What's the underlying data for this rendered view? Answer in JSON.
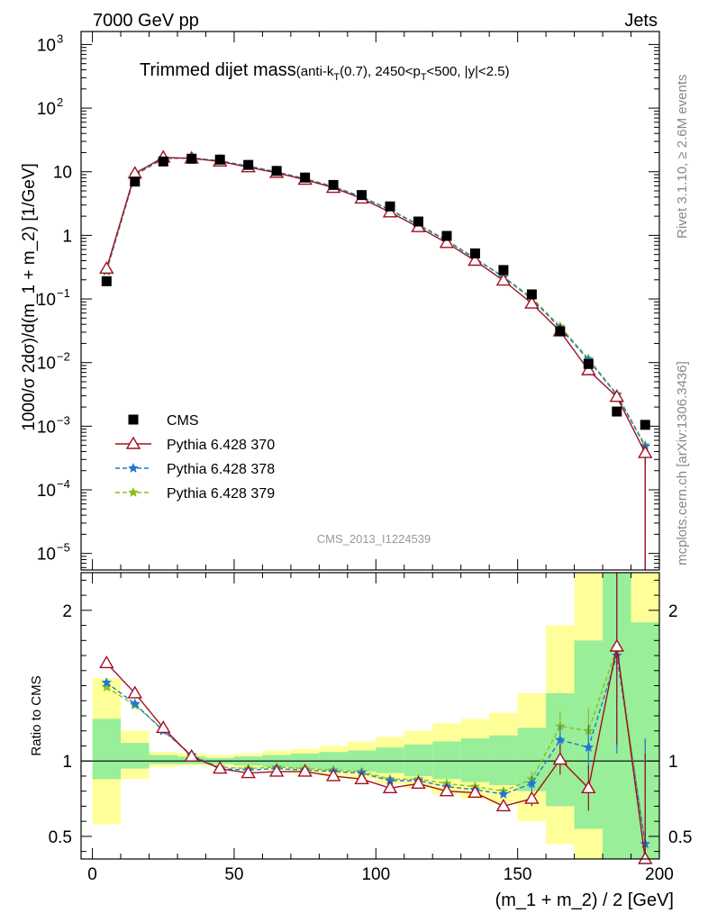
{
  "header": {
    "left": "7000 GeV pp",
    "right": "Jets"
  },
  "title": {
    "main": "Trimmed dijet mass",
    "cuts_prefix": "(anti-k",
    "cuts_sub1": "T",
    "cuts_mid": "(0.7), 2450<p",
    "cuts_sub2": "T",
    "cuts_suffix": "<500, |y|<2.5)"
  },
  "side_labels": {
    "rivet": "Rivet 3.1.10, ≥ 2.6M events",
    "mcplots": "mcplots.cern.ch [arXiv:1306.3436]"
  },
  "analysis_id": "CMS_2013_I1224539",
  "colors": {
    "cms": "#000000",
    "p370": "#a01020",
    "p378": "#1f77d4",
    "p379": "#88c020",
    "band_inner": "#99ee99",
    "band_outer": "#ffff99"
  },
  "chart_data": {
    "type": "scatter",
    "x_label": "(m_1 + m_2) / 2 [GeV]",
    "xlim": [
      -4,
      200
    ],
    "x_ticks": [
      0,
      50,
      100,
      150,
      200
    ],
    "x": [
      5,
      15,
      25,
      35,
      45,
      55,
      65,
      75,
      85,
      95,
      105,
      115,
      125,
      135,
      145,
      155,
      165,
      175,
      185,
      195
    ],
    "top_panel": {
      "y_label": "1000/σ 2dσ)/d(m_1 + m_2) [1/GeV]",
      "y_scale": "log",
      "ylim": [
        5.5e-06,
        1600
      ],
      "y_ticks": [
        {
          "value": 1e-05,
          "base": "10",
          "exp": "−5"
        },
        {
          "value": 0.0001,
          "base": "10",
          "exp": "−4"
        },
        {
          "value": 0.001,
          "base": "10",
          "exp": "−3"
        },
        {
          "value": 0.01,
          "base": "10",
          "exp": "−2"
        },
        {
          "value": 0.1,
          "base": "10",
          "exp": "−1"
        },
        {
          "value": 1,
          "base": "1",
          "exp": ""
        },
        {
          "value": 10,
          "base": "10",
          "exp": ""
        },
        {
          "value": 100,
          "base": "10",
          "exp": "2"
        },
        {
          "value": 1000,
          "base": "10",
          "exp": "3"
        }
      ],
      "legend_position": "left-middle",
      "series": [
        {
          "name": "CMS",
          "key": "cms",
          "style": "square",
          "values": [
            0.19,
            7.0,
            14.5,
            16.0,
            15.5,
            12.8,
            10.3,
            8.1,
            6.2,
            4.3,
            2.85,
            1.65,
            0.98,
            0.52,
            0.285,
            0.118,
            0.031,
            0.0095,
            0.0017,
            0.00105
          ]
        },
        {
          "name": "Pythia 6.428 370",
          "key": "p370",
          "style": "triangle",
          "values": [
            0.3,
            9.4,
            16.8,
            16.2,
            14.5,
            11.8,
            9.6,
            7.5,
            5.6,
            3.8,
            2.3,
            1.35,
            0.76,
            0.4,
            0.195,
            0.085,
            0.031,
            0.0076,
            0.0029,
            0.00038
          ]
        },
        {
          "name": "Pythia 6.428 378",
          "key": "p378",
          "style": "star",
          "values": [
            0.28,
            9.0,
            16.2,
            16.5,
            14.8,
            12.2,
            9.9,
            7.7,
            5.8,
            4.0,
            2.5,
            1.45,
            0.82,
            0.43,
            0.22,
            0.1,
            0.035,
            0.011,
            0.0031,
            0.00048
          ]
        },
        {
          "name": "Pythia 6.428 379",
          "key": "p379",
          "style": "star",
          "values": [
            0.27,
            8.8,
            16.0,
            16.4,
            14.9,
            12.3,
            10.0,
            7.8,
            5.9,
            4.05,
            2.55,
            1.5,
            0.84,
            0.44,
            0.225,
            0.105,
            0.037,
            0.0115,
            0.0032,
            0.0005
          ]
        }
      ]
    },
    "bottom_panel": {
      "y_label": "Ratio to CMS",
      "ylim": [
        0.35,
        2.25
      ],
      "y_ticks": [
        0.5,
        1,
        2
      ],
      "reference_line": 1,
      "band_inner": [
        [
          0.88,
          1.28
        ],
        [
          0.95,
          1.12
        ],
        [
          0.98,
          1.04
        ],
        [
          0.98,
          1.03
        ],
        [
          0.98,
          1.02
        ],
        [
          0.97,
          1.03
        ],
        [
          0.96,
          1.04
        ],
        [
          0.95,
          1.05
        ],
        [
          0.94,
          1.06
        ],
        [
          0.93,
          1.07
        ],
        [
          0.92,
          1.09
        ],
        [
          0.9,
          1.11
        ],
        [
          0.88,
          1.13
        ],
        [
          0.86,
          1.15
        ],
        [
          0.84,
          1.17
        ],
        [
          0.8,
          1.22
        ],
        [
          0.7,
          1.45
        ],
        [
          0.55,
          1.8
        ],
        [
          0.35,
          2.25
        ],
        [
          0.35,
          1.92
        ]
      ],
      "band_outer": [
        [
          0.58,
          1.55
        ],
        [
          0.88,
          1.2
        ],
        [
          0.96,
          1.06
        ],
        [
          0.97,
          1.05
        ],
        [
          0.97,
          1.04
        ],
        [
          0.95,
          1.05
        ],
        [
          0.94,
          1.07
        ],
        [
          0.92,
          1.08
        ],
        [
          0.9,
          1.1
        ],
        [
          0.88,
          1.13
        ],
        [
          0.85,
          1.16
        ],
        [
          0.82,
          1.2
        ],
        [
          0.78,
          1.25
        ],
        [
          0.75,
          1.28
        ],
        [
          0.72,
          1.32
        ],
        [
          0.6,
          1.45
        ],
        [
          0.45,
          1.9
        ],
        [
          0.35,
          2.25
        ],
        [
          0.35,
          2.25
        ],
        [
          0.35,
          2.25
        ]
      ],
      "series": [
        {
          "key": "p370",
          "style": "triangle",
          "values": [
            1.65,
            1.45,
            1.22,
            1.03,
            0.95,
            0.92,
            0.93,
            0.93,
            0.9,
            0.88,
            0.82,
            0.85,
            0.8,
            0.79,
            0.7,
            0.75,
            1.01,
            0.82,
            1.76,
            0.35
          ]
        },
        {
          "key": "p378",
          "style": "star",
          "values": [
            1.52,
            1.38,
            1.2,
            1.04,
            0.95,
            0.94,
            0.95,
            0.94,
            0.93,
            0.92,
            0.87,
            0.87,
            0.83,
            0.81,
            0.78,
            0.85,
            1.14,
            1.09,
            1.7,
            0.45
          ]
        },
        {
          "key": "p379",
          "style": "star",
          "values": [
            1.49,
            1.37,
            1.21,
            1.03,
            0.96,
            0.95,
            0.96,
            0.95,
            0.94,
            0.93,
            0.88,
            0.88,
            0.85,
            0.83,
            0.8,
            0.88,
            1.23,
            1.2,
            1.75,
            0.45
          ]
        }
      ]
    }
  }
}
